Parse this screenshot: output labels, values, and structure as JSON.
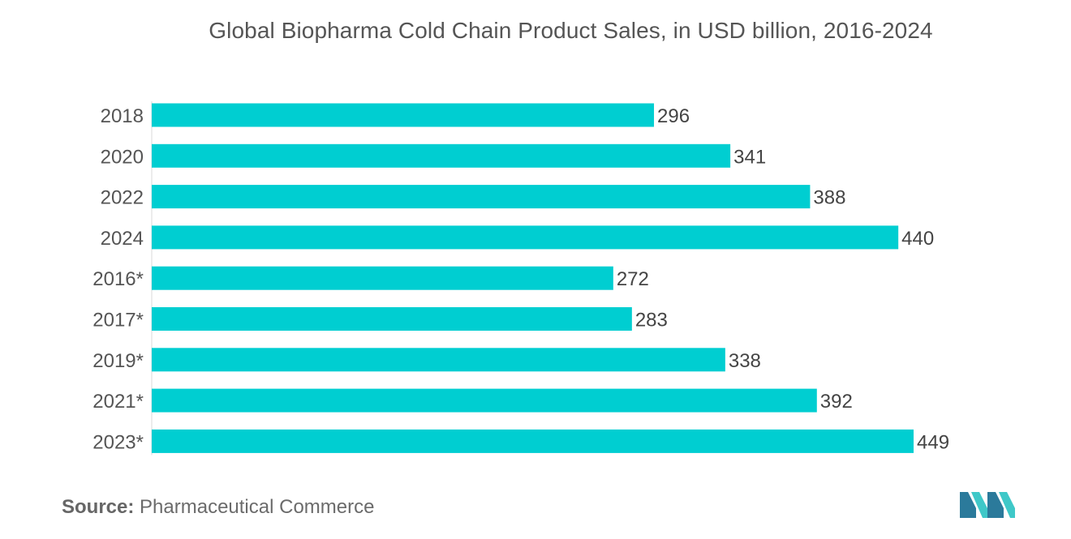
{
  "chart_data": {
    "type": "bar",
    "orientation": "horizontal",
    "title": "Global Biopharma Cold Chain Product Sales, in USD billion, 2016-2024",
    "categories": [
      "2018",
      "2020",
      "2022",
      "2024",
      "2016*",
      "2017*",
      "2019*",
      "2021*",
      "2023*"
    ],
    "values": [
      296,
      341,
      388,
      440,
      272,
      283,
      338,
      392,
      449
    ],
    "xlabel": "",
    "ylabel": "",
    "xlim": [
      0,
      449
    ],
    "grid": false,
    "bar_color": "#00CED1"
  },
  "source": {
    "label": "Source:",
    "text": "Pharmaceutical Commerce"
  },
  "logo": {
    "icon": "mordor-intelligence-logo-icon",
    "colors": [
      "#2B7A9B",
      "#3FC8C8"
    ]
  }
}
